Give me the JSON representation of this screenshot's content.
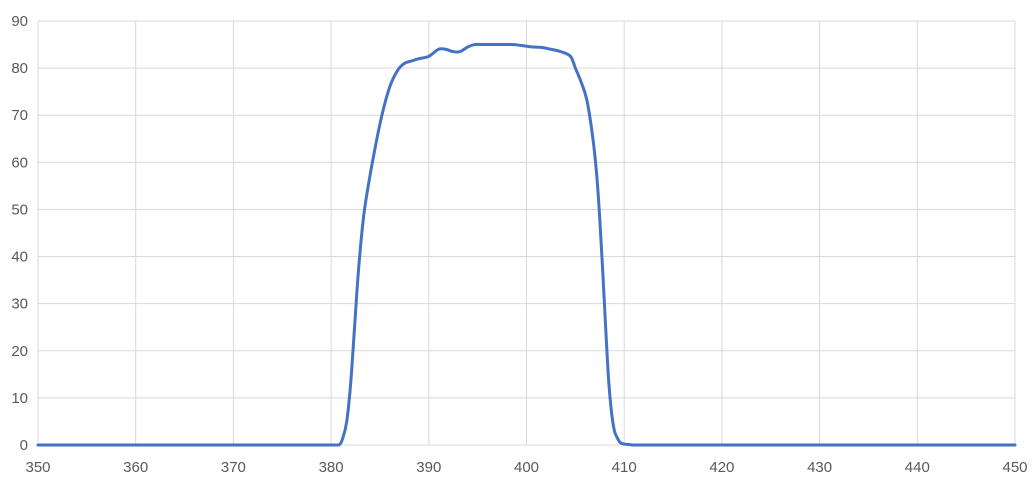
{
  "chart_data": {
    "type": "line",
    "title": "",
    "xlabel": "",
    "ylabel": "",
    "xlim": [
      350,
      450
    ],
    "ylim": [
      0,
      90
    ],
    "x_ticks": [
      350,
      360,
      370,
      380,
      390,
      400,
      410,
      420,
      430,
      440,
      450
    ],
    "y_ticks": [
      0,
      10,
      20,
      30,
      40,
      50,
      60,
      70,
      80,
      90
    ],
    "x_tick_labels": [
      "350",
      "360",
      "370",
      "380",
      "390",
      "400",
      "410",
      "420",
      "430",
      "440",
      "450"
    ],
    "y_tick_labels": [
      "0",
      "10",
      "20",
      "30",
      "40",
      "50",
      "60",
      "70",
      "80",
      "90"
    ],
    "grid": true,
    "legend": "none",
    "colors": {
      "series": "#4472c4",
      "grid": "#d9d9d9",
      "tick_text": "#595959"
    },
    "series": [
      {
        "x": [
          350,
          355,
          360,
          365,
          370,
          375,
          380,
          380.8,
          381.2,
          381.6,
          382.0,
          382.4,
          382.8,
          383.3,
          383.8,
          384.5,
          385.2,
          386.0,
          386.8,
          387.5,
          388.2,
          389.0,
          390.0,
          391.0,
          391.7,
          392.5,
          393.2,
          394.0,
          394.7,
          395.5,
          396.5,
          397.5,
          398.5,
          399.5,
          400.5,
          401.5,
          402.5,
          403.5,
          404.5,
          405.0,
          405.6,
          406.2,
          406.8,
          407.2,
          407.5,
          407.8,
          408.1,
          408.4,
          408.7,
          409.0,
          409.3,
          409.6,
          410.0,
          410.5,
          411.0,
          412,
          415,
          420,
          425,
          430,
          435,
          440,
          445,
          450
        ],
        "values": [
          0,
          0,
          0,
          0,
          0,
          0,
          0,
          0,
          1.5,
          5,
          13,
          25,
          37,
          48,
          55,
          63,
          70,
          76,
          79.5,
          81,
          81.5,
          82,
          82.5,
          84,
          84,
          83.5,
          83.5,
          84.5,
          85,
          85,
          85,
          85,
          85,
          84.8,
          84.5,
          84.4,
          84,
          83.5,
          82.5,
          80,
          77,
          73,
          65,
          57,
          48,
          37,
          25,
          14,
          7,
          3,
          1.5,
          0.5,
          0.2,
          0.1,
          0,
          0,
          0,
          0,
          0,
          0,
          0,
          0,
          0,
          0
        ]
      }
    ]
  }
}
